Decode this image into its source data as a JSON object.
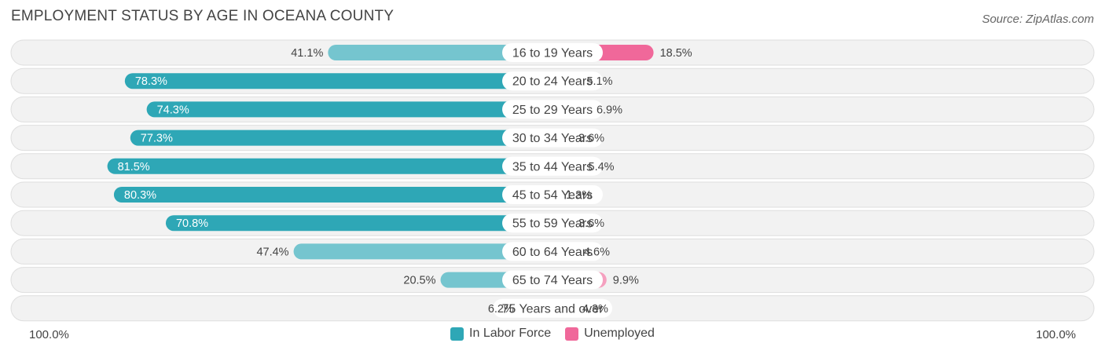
{
  "title": "EMPLOYMENT STATUS BY AGE IN OCEANA COUNTY",
  "source": "Source: ZipAtlas.com",
  "axis": {
    "left_label": "100.0%",
    "right_label": "100.0%"
  },
  "legend": [
    {
      "label": "In Labor Force",
      "color": "#2ea7b6"
    },
    {
      "label": "Unemployed",
      "color": "#f0689a"
    }
  ],
  "colors": {
    "labor_strong": "#2ea7b6",
    "labor_light": "#75c5cf",
    "unemployed_strong": "#f0689a",
    "unemployed_light": "#f5a0bf",
    "row_bg": "#f2f2f2",
    "row_border": "#dedede"
  },
  "chart_data": {
    "type": "bar",
    "title": "EMPLOYMENT STATUS BY AGE IN OCEANA COUNTY",
    "categories": [
      "16 to 19 Years",
      "20 to 24 Years",
      "25 to 29 Years",
      "30 to 34 Years",
      "35 to 44 Years",
      "45 to 54 Years",
      "55 to 59 Years",
      "60 to 64 Years",
      "65 to 74 Years",
      "75 Years and over"
    ],
    "series": [
      {
        "name": "In Labor Force",
        "values": [
          41.1,
          78.3,
          74.3,
          77.3,
          81.5,
          80.3,
          70.8,
          47.4,
          20.5,
          6.2
        ],
        "labels": [
          "41.1%",
          "78.3%",
          "74.3%",
          "77.3%",
          "81.5%",
          "80.3%",
          "70.8%",
          "47.4%",
          "20.5%",
          "6.2%"
        ]
      },
      {
        "name": "Unemployed",
        "values": [
          18.5,
          5.1,
          6.9,
          3.6,
          5.4,
          1.3,
          3.6,
          4.6,
          9.9,
          4.3
        ],
        "labels": [
          "18.5%",
          "5.1%",
          "6.9%",
          "3.6%",
          "5.4%",
          "1.3%",
          "3.6%",
          "4.6%",
          "9.9%",
          "4.3%"
        ]
      }
    ],
    "xlim": [
      0,
      100
    ],
    "orientation": "diverging-horizontal",
    "legend_position": "bottom-center"
  }
}
